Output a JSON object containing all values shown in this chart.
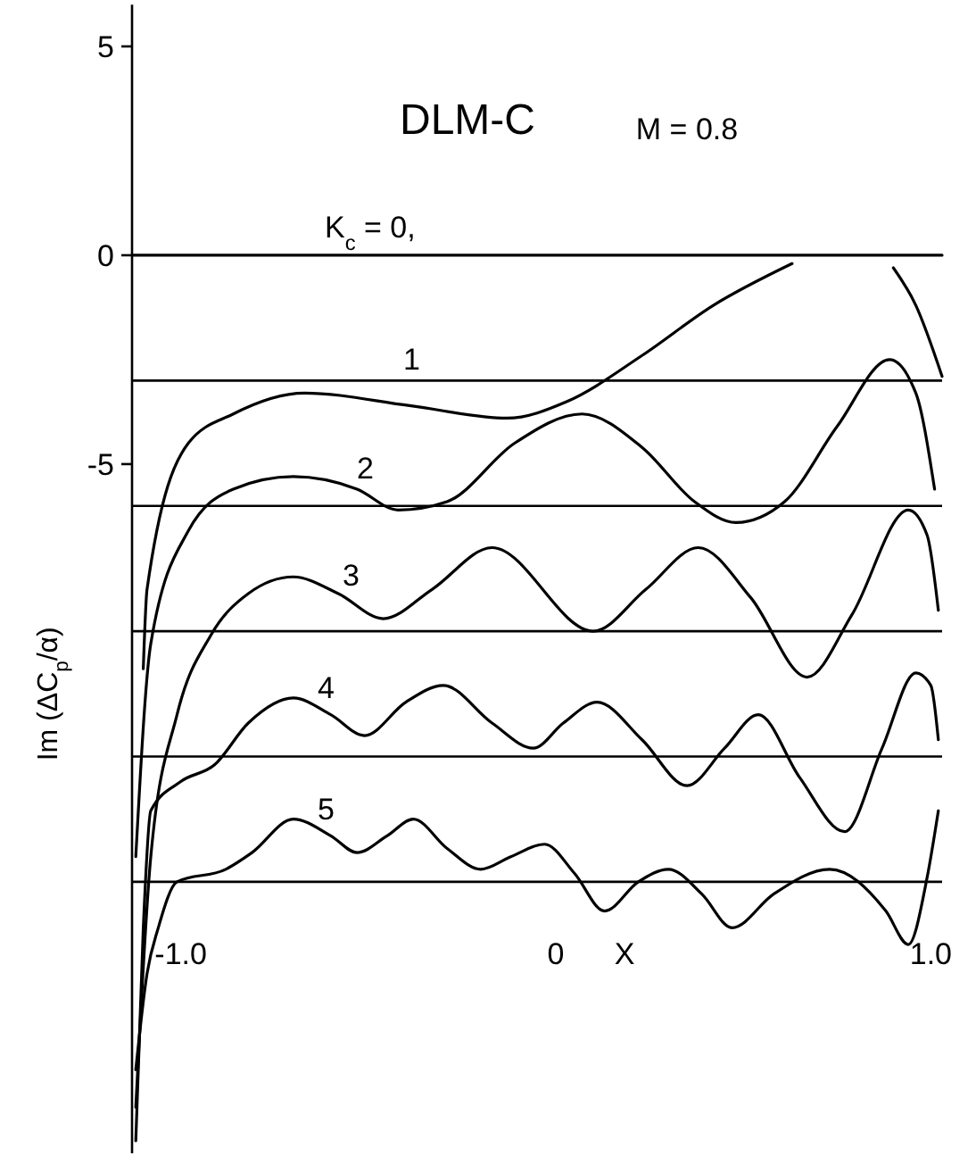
{
  "chart_data": {
    "type": "line",
    "title": "DLM-C",
    "subtitle": "M = 0.8",
    "xlabel": "X",
    "ylabel": "Im (ΔC$_{p}$/α)",
    "xlim": [
      -1.13,
      1.03
    ],
    "xticks": [
      {
        "value": -1,
        "label": "-1.0"
      },
      0,
      {
        "value": 1,
        "label": "1.0"
      }
    ],
    "ylim": [
      -21.5,
      6
    ],
    "yticks": [
      5,
      0,
      -5
    ],
    "grid": false,
    "marker": "none",
    "line_style": "solid",
    "series": [
      {
        "name": "K$_{c}$ = 0,",
        "color": "#000000",
        "x": [
          -1.13,
          1.03
        ],
        "values": [
          0,
          0
        ]
      },
      {
        "name": "1",
        "color": "#000000",
        "x": [
          -1.1,
          -1.09,
          -0.98,
          -0.86,
          -0.67,
          -0.39,
          -0.13,
          0.03,
          0.23,
          0.42,
          0.63,
          0.76,
          0.9,
          0.96,
          1.03
        ],
        "values": [
          -9.9,
          -8.0,
          -4.5,
          -3.8,
          -3.3,
          -3.6,
          -3.9,
          -3.5,
          -2.4,
          -1.2,
          -0.2,
          null,
          -0.3,
          -1.2,
          -2.9
        ]
      },
      {
        "name": "2",
        "color": "#000000",
        "x": [
          -1.12,
          -1.08,
          -0.98,
          -0.86,
          -0.7,
          -0.53,
          -0.42,
          -0.29,
          -0.11,
          0.07,
          0.23,
          0.37,
          0.48,
          0.61,
          0.75,
          0.89,
          0.96,
          1.01
        ],
        "values": [
          -14.4,
          -9.3,
          -6.6,
          -5.6,
          -5.3,
          -5.6,
          -6.1,
          -5.9,
          -4.5,
          -3.8,
          -4.6,
          -5.9,
          -6.4,
          -5.9,
          -4.1,
          -2.5,
          -3.3,
          -5.6
        ]
      },
      {
        "name": "3",
        "color": "#000000",
        "x": [
          -1.12,
          -1.08,
          -1.01,
          -0.92,
          -0.82,
          -0.7,
          -0.58,
          -0.46,
          -0.33,
          -0.17,
          0.1,
          0.24,
          0.38,
          0.52,
          0.67,
          0.79,
          0.94,
          0.99,
          1.02
        ],
        "values": [
          -20.4,
          -14.4,
          -11.0,
          -9.1,
          -8.1,
          -7.7,
          -8.1,
          -8.7,
          -8.0,
          -7.0,
          -9.0,
          -8.0,
          -7.0,
          -8.2,
          -10.1,
          -8.6,
          -6.1,
          -6.7,
          -8.5
        ]
      },
      {
        "name": "4",
        "color": "#000000",
        "x": [
          -1.12,
          -1.1,
          -1.08,
          -1.0,
          -0.91,
          -0.82,
          -0.7,
          -0.6,
          -0.51,
          -0.4,
          -0.3,
          -0.17,
          -0.06,
          0.02,
          0.11,
          0.23,
          0.35,
          0.45,
          0.54,
          0.65,
          0.77,
          0.87,
          0.96,
          1.0,
          1.02
        ],
        "values": [
          -21.2,
          -16.1,
          -13.3,
          -12.6,
          -12.2,
          -11.2,
          -10.6,
          -11.0,
          -11.5,
          -10.7,
          -10.3,
          -11.2,
          -11.8,
          -11.2,
          -10.7,
          -11.6,
          -12.7,
          -11.8,
          -11.0,
          -12.5,
          -13.8,
          -11.8,
          -10.0,
          -10.3,
          -11.6
        ]
      },
      {
        "name": "5",
        "color": "#000000",
        "x": [
          -1.12,
          -1.09,
          -1.06,
          -1.01,
          -0.88,
          -0.81,
          -0.7,
          -0.6,
          -0.53,
          -0.45,
          -0.38,
          -0.29,
          -0.2,
          -0.12,
          -0.03,
          0.05,
          0.13,
          0.22,
          0.3,
          0.39,
          0.47,
          0.58,
          0.73,
          0.88,
          0.94,
          0.99,
          1.02
        ],
        "values": [
          -19.5,
          -17.2,
          -16.1,
          -15.0,
          -14.7,
          -14.3,
          -13.5,
          -13.9,
          -14.3,
          -13.9,
          -13.5,
          -14.2,
          -14.7,
          -14.4,
          -14.1,
          -14.8,
          -15.7,
          -15.0,
          -14.7,
          -15.3,
          -16.1,
          -15.3,
          -14.7,
          -15.7,
          -16.5,
          -14.9,
          -13.3
        ]
      }
    ],
    "ref_lines": [
      {
        "axis": "y",
        "value": -3
      },
      {
        "axis": "y",
        "value": -6
      },
      {
        "axis": "y",
        "value": -9
      },
      {
        "axis": "y",
        "value": -12
      },
      {
        "axis": "y",
        "value": -15
      }
    ]
  }
}
